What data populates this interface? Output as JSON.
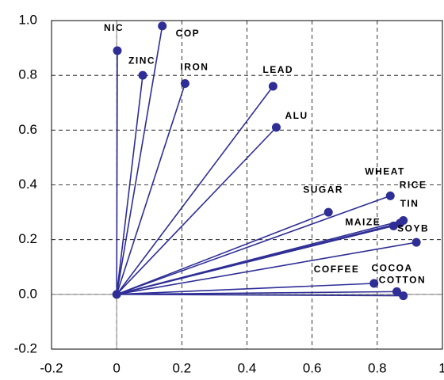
{
  "chart_data": {
    "type": "scatter",
    "categories": [
      "NIC",
      "COP",
      "ZINC",
      "IRON",
      "LEAD",
      "ALU",
      "SUGAR",
      "WHEAT",
      "RICE",
      "TIN",
      "MAIZE",
      "SOYB",
      "COFFEE",
      "COCOA",
      "COTTON"
    ],
    "x": [
      0.002,
      0.14,
      0.08,
      0.21,
      0.48,
      0.49,
      0.65,
      0.84,
      0.88,
      0.87,
      0.85,
      0.92,
      0.79,
      0.86,
      0.88
    ],
    "values": [
      0.89,
      0.98,
      0.8,
      0.77,
      0.76,
      0.61,
      0.3,
      0.36,
      0.27,
      0.26,
      0.25,
      0.19,
      0.04,
      0.01,
      -0.005
    ],
    "color": "#2e2e96",
    "xlim": [
      -0.2,
      1.0
    ],
    "ylim": [
      -0.2,
      1.0
    ],
    "xticks": [
      -0.2,
      0,
      0.2,
      0.4,
      0.6,
      0.8,
      1
    ],
    "yticks": [
      {
        "value": -0.2,
        "label": "-0.2"
      },
      {
        "value": 0,
        "label": "0.0"
      },
      0.2,
      0.4,
      0.6,
      0.8,
      {
        "value": 1,
        "label": "1.0"
      }
    ],
    "grid": true
  }
}
